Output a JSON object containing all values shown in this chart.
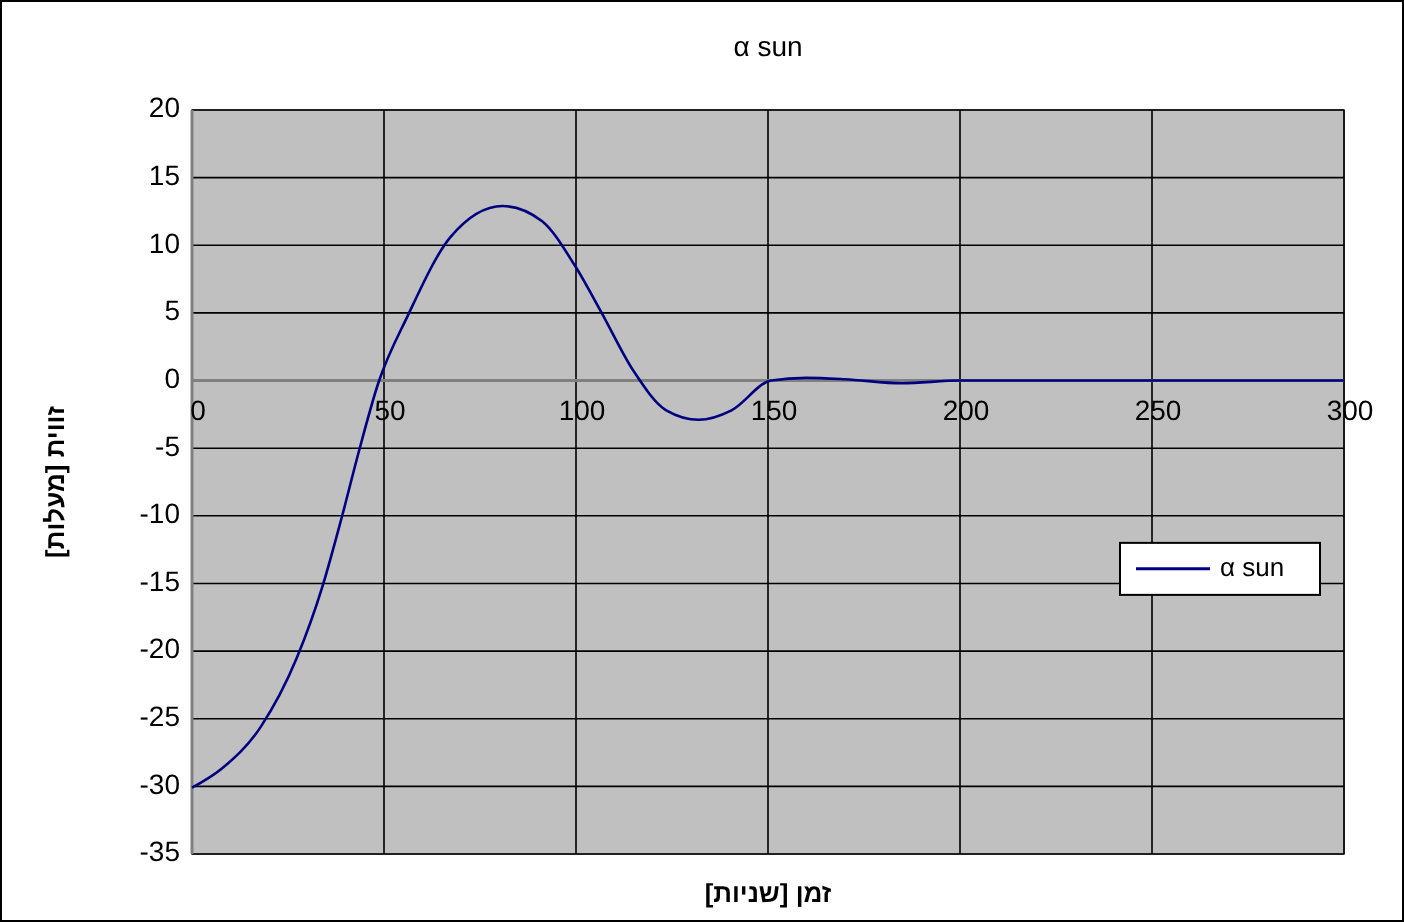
{
  "chart_data": {
    "type": "line",
    "title": "α sun",
    "xlabel": "זמן [שניות]",
    "ylabel": "זווית [מעלות]",
    "xlim": [
      0,
      300
    ],
    "xticks": [
      0,
      50,
      100,
      150,
      200,
      250,
      300
    ],
    "ylim": [
      -35,
      20
    ],
    "yticks": [
      -35,
      -30,
      -25,
      -20,
      -15,
      -10,
      -5,
      0,
      5,
      10,
      15,
      20
    ],
    "grid": true,
    "legend": "right",
    "marker": "none",
    "line_style": "solid",
    "series": [
      {
        "name": "α sun",
        "color": "#000080",
        "x": [
          0,
          7.7,
          17.9,
          27.3,
          34,
          39.2,
          43.4,
          48.5,
          56.2,
          67.3,
          80.9,
          91.1,
          99.7,
          106.5,
          115,
          123.5,
          132,
          140.5,
          150.8,
          160,
          170,
          185,
          200,
          250,
          300
        ],
        "values": [
          -30.1,
          -28.7,
          -25.6,
          -20.5,
          -15.2,
          -9.9,
          -5.3,
          -0.2,
          4.8,
          10.6,
          12.9,
          11.8,
          8.5,
          5.1,
          0.7,
          -2.2,
          -2.9,
          -2.2,
          0,
          0.2,
          0.1,
          -0.2,
          0,
          0,
          0
        ]
      }
    ]
  }
}
